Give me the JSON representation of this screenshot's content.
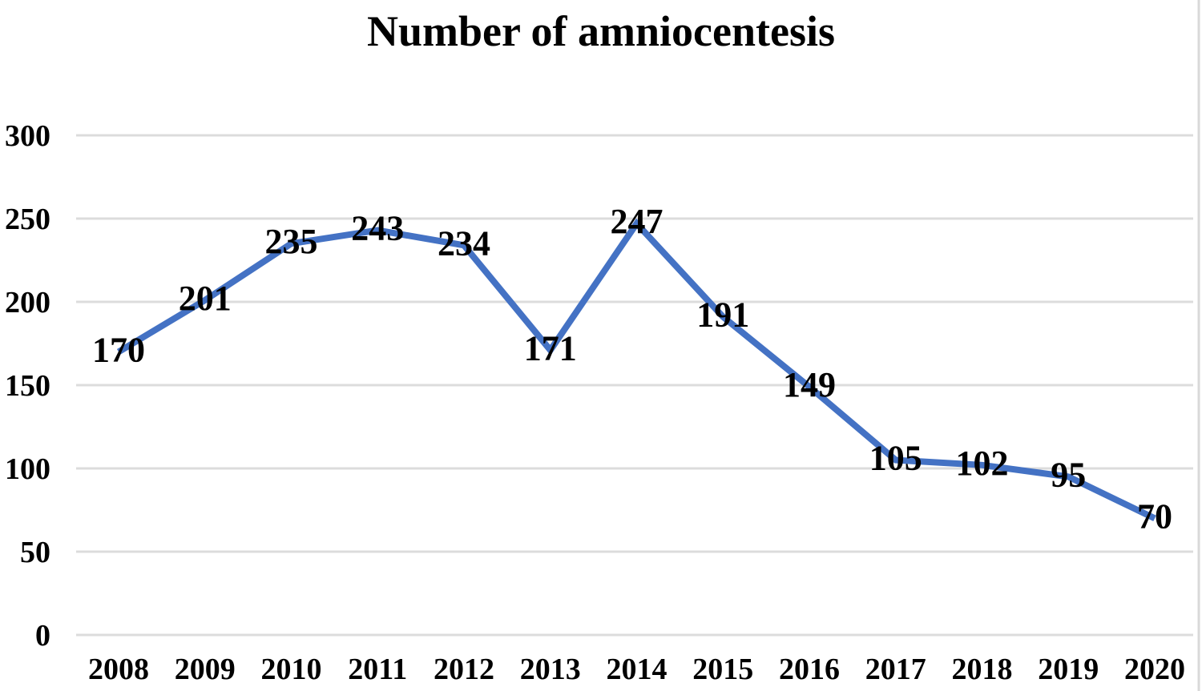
{
  "chart_data": {
    "type": "line",
    "title": "Number of amniocentesis",
    "categories": [
      "2008",
      "2009",
      "2010",
      "2011",
      "2012",
      "2013",
      "2014",
      "2015",
      "2016",
      "2017",
      "2018",
      "2019",
      "2020"
    ],
    "series": [
      {
        "name": "Number of amniocentesis",
        "values": [
          170,
          201,
          235,
          243,
          234,
          171,
          247,
          191,
          149,
          105,
          102,
          95,
          70
        ]
      }
    ],
    "data_labels_shown": true,
    "xlabel": "",
    "ylabel": "",
    "y_ticks": [
      0,
      50,
      100,
      150,
      200,
      250,
      300
    ],
    "ylim": [
      0,
      300
    ],
    "grid": true,
    "legend_position": "none",
    "line_color": "#4472C4",
    "gridline_color": "#DCDCDC",
    "right_border_color": "#D9D9D9",
    "text_color": "#000000"
  }
}
